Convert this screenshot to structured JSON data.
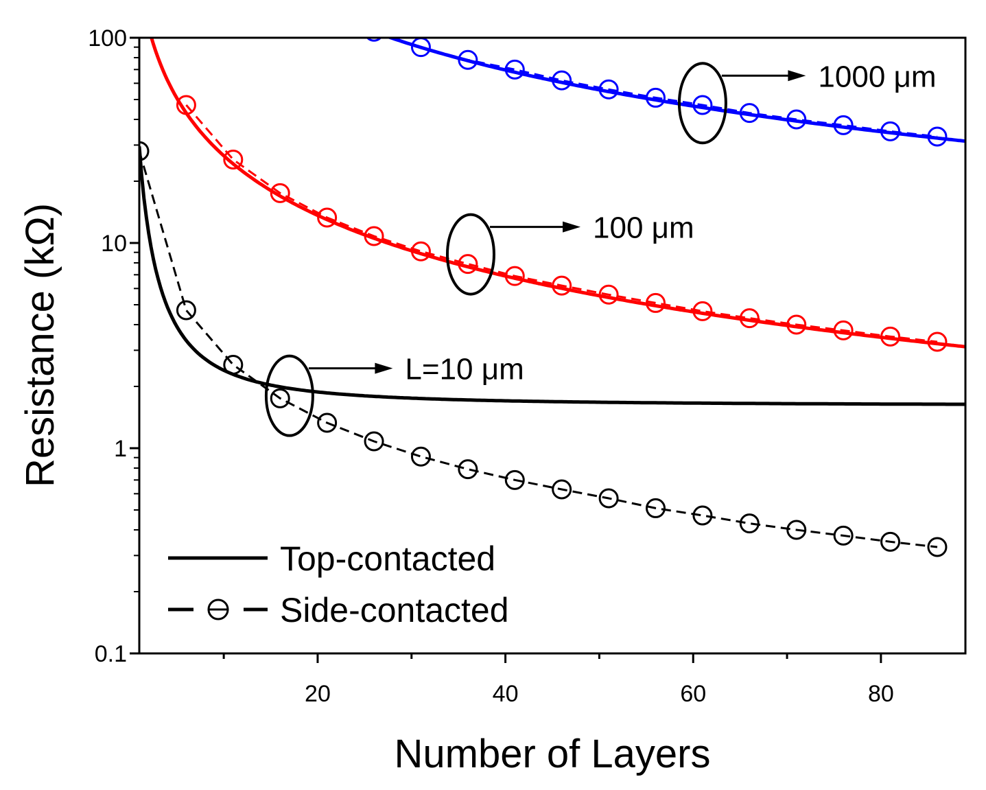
{
  "chart_data": {
    "type": "line",
    "xlabel": "Number of Layers",
    "ylabel": "Resistance (kΩ)",
    "xlim": [
      1,
      89
    ],
    "ylim": [
      0.1,
      100
    ],
    "yscale": "log",
    "xticks": [
      20,
      40,
      60,
      80
    ],
    "xtick_labels": [
      "20",
      "40",
      "60",
      "80"
    ],
    "yticks": [
      0.1,
      1,
      10,
      100
    ],
    "ytick_labels": [
      "0.1",
      "1",
      "10",
      "100"
    ],
    "legend": {
      "position": "bottom-left",
      "top_label": "Top-contacted",
      "side_label": "Side-contacted"
    },
    "annotations": [
      {
        "label": "1000 μm",
        "ellipse_center": [
          61,
          48
        ],
        "arrow_to_x": 72
      },
      {
        "label": "100 μm",
        "ellipse_center": [
          36.3,
          8.8
        ],
        "arrow_to_x": 48
      },
      {
        "label": "L=10 μm",
        "ellipse_center": [
          17,
          1.8
        ],
        "arrow_to_x": 28
      }
    ],
    "series": [
      {
        "name": "Top-contacted L=1000 μm",
        "color": "#0000ff",
        "style": "solid",
        "params": {
          "a": 2794,
          "c": 0.14
        }
      },
      {
        "name": "Side-contacted L=1000 μm",
        "color": "#0000ff",
        "style": "circles",
        "x": [
          26,
          31,
          36,
          41,
          46,
          51,
          56,
          61,
          66,
          71,
          76,
          81,
          86
        ],
        "y": [
          107,
          90,
          78,
          70,
          62,
          56,
          51,
          47,
          43,
          40,
          37.5,
          35,
          33
        ]
      },
      {
        "name": "Top-contacted L=100 μm",
        "color": "#ff0000",
        "style": "solid",
        "params": {
          "a": 279.4,
          "c": 0.5
        }
      },
      {
        "name": "Side-contacted L=100 μm",
        "color": "#ff0000",
        "style": "circles",
        "x": [
          6,
          11,
          16,
          21,
          26,
          31,
          36,
          41,
          46,
          51,
          56,
          61,
          66,
          71,
          76,
          81,
          86
        ],
        "y": [
          47,
          25.5,
          17.5,
          13.3,
          10.8,
          9.1,
          7.9,
          6.9,
          6.2,
          5.6,
          5.1,
          4.65,
          4.3,
          4.0,
          3.75,
          3.5,
          3.3
        ]
      },
      {
        "name": "Top-contacted L=10 μm",
        "color": "#000000",
        "style": "solid",
        "params": {
          "a": 27.94,
          "p": 1.55,
          "c": 1.61
        }
      },
      {
        "name": "Side-contacted L=10 μm",
        "color": "#000000",
        "style": "circles",
        "x": [
          1,
          6,
          11,
          16,
          21,
          26,
          31,
          36,
          41,
          46,
          51,
          56,
          61,
          66,
          71,
          76,
          81,
          86
        ],
        "y": [
          28,
          4.7,
          2.55,
          1.75,
          1.33,
          1.08,
          0.91,
          0.79,
          0.7,
          0.63,
          0.57,
          0.51,
          0.47,
          0.43,
          0.4,
          0.375,
          0.35,
          0.33
        ]
      }
    ]
  }
}
